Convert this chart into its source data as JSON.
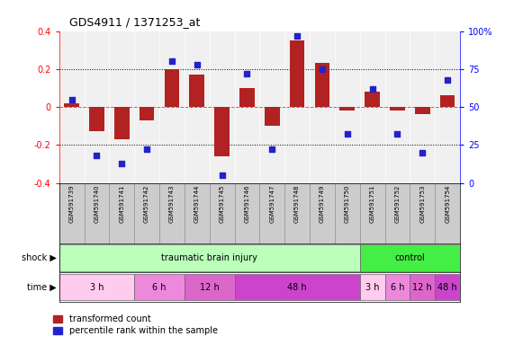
{
  "title": "GDS4911 / 1371253_at",
  "samples": [
    "GSM591739",
    "GSM591740",
    "GSM591741",
    "GSM591742",
    "GSM591743",
    "GSM591744",
    "GSM591745",
    "GSM591746",
    "GSM591747",
    "GSM591748",
    "GSM591749",
    "GSM591750",
    "GSM591751",
    "GSM591752",
    "GSM591753",
    "GSM591754"
  ],
  "bar_values": [
    0.02,
    -0.13,
    -0.17,
    -0.07,
    0.2,
    0.17,
    -0.26,
    0.1,
    -0.1,
    0.35,
    0.23,
    -0.02,
    0.08,
    -0.02,
    -0.04,
    0.06
  ],
  "scatter_values": [
    55,
    18,
    13,
    22,
    80,
    78,
    5,
    72,
    22,
    97,
    75,
    32,
    62,
    32,
    20,
    68
  ],
  "ylim_left": [
    -0.4,
    0.4
  ],
  "ylim_right": [
    0,
    100
  ],
  "bar_color": "#B22222",
  "scatter_color": "#2222CC",
  "plot_bg": "#f0f0f0",
  "shock_groups": [
    {
      "label": "traumatic brain injury",
      "start": 0,
      "end": 12,
      "color": "#bbffbb"
    },
    {
      "label": "control",
      "start": 12,
      "end": 16,
      "color": "#44ee44"
    }
  ],
  "time_groups": [
    {
      "label": "3 h",
      "start": 0,
      "end": 3,
      "color": "#ffccee"
    },
    {
      "label": "6 h",
      "start": 3,
      "end": 5,
      "color": "#ee88dd"
    },
    {
      "label": "12 h",
      "start": 5,
      "end": 7,
      "color": "#dd66cc"
    },
    {
      "label": "48 h",
      "start": 7,
      "end": 12,
      "color": "#cc44cc"
    },
    {
      "label": "3 h",
      "start": 12,
      "end": 13,
      "color": "#ffccee"
    },
    {
      "label": "6 h",
      "start": 13,
      "end": 14,
      "color": "#ee88dd"
    },
    {
      "label": "12 h",
      "start": 14,
      "end": 15,
      "color": "#dd66cc"
    },
    {
      "label": "48 h",
      "start": 15,
      "end": 16,
      "color": "#cc44cc"
    }
  ],
  "legend_red_label": "transformed count",
  "legend_blue_label": "percentile rank within the sample"
}
